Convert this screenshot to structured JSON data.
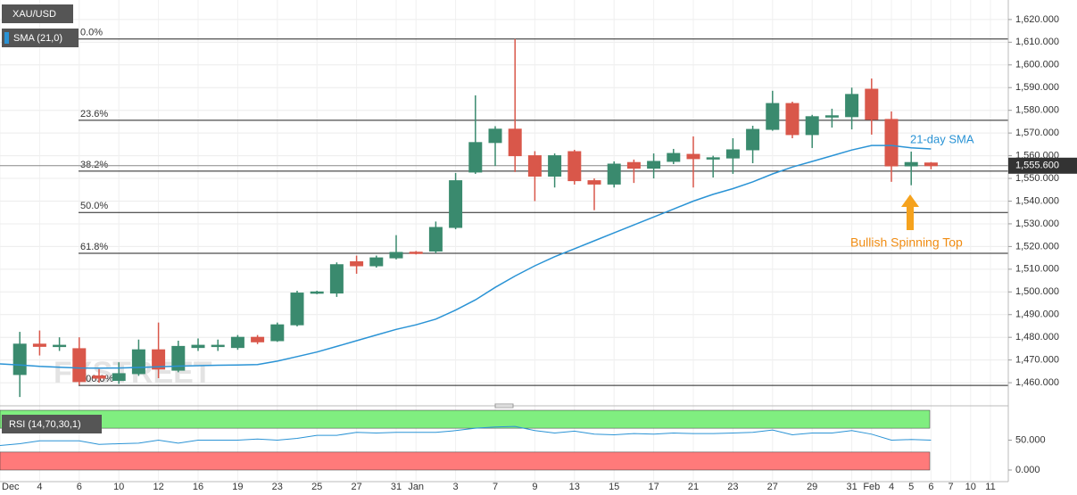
{
  "chart_data": {
    "type": "candlestick",
    "symbol": "XAU/USD",
    "categories": [
      "Dec",
      null,
      "4",
      null,
      "6",
      null,
      "10",
      null,
      "12",
      null,
      "16",
      null,
      "19",
      null,
      "23",
      null,
      "25",
      null,
      "27",
      null,
      "31",
      "Jan",
      null,
      "3",
      null,
      "7",
      null,
      "9",
      null,
      "13",
      null,
      "15",
      null,
      "17",
      null,
      "21",
      null,
      "23",
      null,
      "27",
      null,
      "29",
      null,
      "31",
      "Feb",
      "4",
      "5",
      "6",
      "7",
      "10",
      "11"
    ],
    "open": [
      null,
      1463.6,
      1477,
      1476,
      1475,
      1463,
      1461,
      1464,
      1474.5,
      1465.5,
      1475.5,
      1476,
      1475.5,
      1480,
      1478.5,
      1485.5,
      1499.6,
      1499.5,
      1513.3,
      1511.5,
      1515,
      1517.5,
      1518,
      1528.4,
      1552.8,
      1565.8,
      1571.7,
      1560,
      1551,
      1561.8,
      1549,
      1547.5,
      1557,
      1554.5,
      1557.5,
      1560.6,
      1559,
      1559,
      1562.6,
      1571.6,
      1583,
      1569.3,
      1577.3,
      1577.2,
      1589.3,
      1576,
      1555.5,
      1556.8,
      null,
      null,
      null
    ],
    "high": [
      null,
      1482.4,
      1483,
      1480,
      1480,
      1466,
      1469,
      1479,
      1486.5,
      1478.5,
      1479.5,
      1479,
      1481,
      1481,
      1486.5,
      1500.5,
      1500.5,
      1513,
      1516,
      1516,
      1525,
      1518,
      1531,
      1552.4,
      1586.6,
      1573,
      1611.4,
      1562,
      1561,
      1562.6,
      1550,
      1557.5,
      1558.3,
      1561,
      1563,
      1568.5,
      1560,
      1567.7,
      1573.2,
      1588.6,
      1583.8,
      1578,
      1580.7,
      1590,
      1594,
      1579.5,
      1561.8,
      1557.2,
      null,
      null,
      null
    ],
    "low": [
      null,
      1453.7,
      1472,
      1474,
      1459,
      1460,
      1459.5,
      1463,
      1462,
      1464.6,
      1474,
      1474,
      1474.5,
      1477,
      1478,
      1484.8,
      1499,
      1497.8,
      1508,
      1510.7,
      1514.3,
      1516.5,
      1517,
      1527.6,
      1552,
      1555.5,
      1552.8,
      1540,
      1546,
      1547.3,
      1536,
      1546,
      1548,
      1550,
      1556.3,
      1546,
      1550.4,
      1552,
      1556.7,
      1571,
      1567.7,
      1563.4,
      1572.4,
      1571.6,
      1569.3,
      1548.5,
      1547,
      1554,
      null,
      null,
      null
    ],
    "close": [
      null,
      1477,
      1476,
      1476.5,
      1460.5,
      1462,
      1464,
      1474.5,
      1466,
      1476,
      1476.5,
      1476.5,
      1480,
      1478,
      1485.5,
      1499.5,
      1500,
      1512,
      1511.5,
      1515,
      1517.4,
      1517,
      1528.4,
      1549,
      1565.8,
      1571.7,
      1560,
      1551,
      1560,
      1549,
      1547.5,
      1556.3,
      1554.5,
      1557.5,
      1561,
      1558.7,
      1559.1,
      1562.6,
      1571.6,
      1583,
      1569.3,
      1577.2,
      1577.6,
      1587,
      1576,
      1555.5,
      1557,
      1555.6,
      null,
      null,
      null
    ],
    "up_color": "#3a8a6e",
    "down_color": "#d9574a",
    "sma": {
      "name": "SMA (21,0)",
      "color": "#2a93d5",
      "values": [
        1468.3,
        1467.8,
        1467.2,
        1466.8,
        1466.5,
        1466.4,
        1466.5,
        1466.7,
        1467,
        1467.3,
        1467.5,
        1467.7,
        1467.8,
        1468,
        1469.5,
        1471.5,
        1473.5,
        1476,
        1478.5,
        1481,
        1483.5,
        1485.5,
        1488,
        1492,
        1496.5,
        1502,
        1507,
        1511.5,
        1515.5,
        1519,
        1522.5,
        1526,
        1529.5,
        1533,
        1536.5,
        1540,
        1543,
        1545.5,
        1548.5,
        1552,
        1555,
        1557.5,
        1560,
        1562.5,
        1564.5,
        1564.5,
        1563.5,
        1563,
        null,
        null,
        null
      ]
    },
    "ylim": [
      1451,
      1628.6
    ],
    "yticks": [
      {
        "value": 1460,
        "label": "1,460.000"
      },
      {
        "value": 1470,
        "label": "1,470.000"
      },
      {
        "value": 1480,
        "label": "1,480.000"
      },
      {
        "value": 1490,
        "label": "1,490.000"
      },
      {
        "value": 1500,
        "label": "1,500.000"
      },
      {
        "value": 1510,
        "label": "1,510.000"
      },
      {
        "value": 1520,
        "label": "1,520.000"
      },
      {
        "value": 1530,
        "label": "1,530.000"
      },
      {
        "value": 1540,
        "label": "1,540.000"
      },
      {
        "value": 1550,
        "label": "1,550.000"
      },
      {
        "value": 1560,
        "label": "1,560.000"
      },
      {
        "value": 1570,
        "label": "1,570.000"
      },
      {
        "value": 1580,
        "label": "1,580.000"
      },
      {
        "value": 1590,
        "label": "1,590.000"
      },
      {
        "value": 1600,
        "label": "1,600.000"
      },
      {
        "value": 1610,
        "label": "1,610.000"
      },
      {
        "value": 1620,
        "label": "1,620.000"
      }
    ],
    "grid": true,
    "current_price": {
      "value": 1555.6,
      "label": "1,555.600"
    },
    "fib_levels": [
      {
        "label": "0.0%",
        "value": 1611.4
      },
      {
        "label": "23.6%",
        "value": 1575.6
      },
      {
        "label": "38.2%",
        "value": 1553.2
      },
      {
        "label": "50.0%",
        "value": 1535
      },
      {
        "label": "61.8%",
        "value": 1517
      },
      {
        "label": "100.0%",
        "value": 1458.8
      }
    ],
    "annotations": {
      "sma_label": "21-day SMA",
      "pattern": "Bullish Spinning Top"
    },
    "watermark": "FXSTREET",
    "rsi": {
      "name": "RSI (14,70,30,1)",
      "color": "#2a93d5",
      "values": [
        41,
        44,
        49,
        49,
        49,
        43,
        44,
        45,
        50,
        45,
        50,
        50,
        50,
        52,
        50,
        53,
        58,
        58,
        63,
        62,
        63,
        63,
        63,
        66,
        70,
        72,
        73,
        66,
        62,
        65,
        60,
        59,
        61,
        60,
        62,
        61,
        61,
        62,
        63,
        67,
        59,
        62,
        62,
        66,
        60,
        50,
        51,
        50,
        null,
        null,
        null
      ],
      "ylim": [
        -20,
        100
      ],
      "yticks": [
        {
          "value": 50,
          "label": "50.000"
        },
        {
          "value": 0,
          "label": "0.000"
        }
      ],
      "bands": [
        {
          "from": 70,
          "to": 100,
          "color": "#80ee80"
        },
        {
          "from": 0,
          "to": 30,
          "color": "#ff7a7a"
        }
      ]
    }
  }
}
